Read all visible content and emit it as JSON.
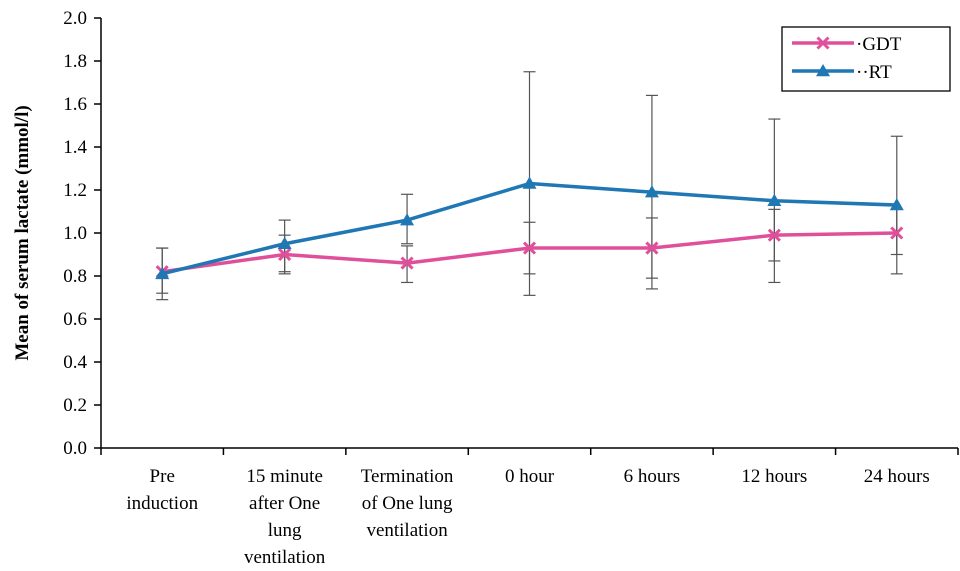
{
  "chart_data": {
    "type": "line",
    "ylabel": "Mean of serum lactate (mmol/l)",
    "xlabel": "",
    "ylim": [
      0,
      2.0
    ],
    "yticks": [
      "0.0",
      "0.2",
      "0.4",
      "0.6",
      "0.8",
      "1.0",
      "1.2",
      "1.4",
      "1.6",
      "1.8",
      "2.0"
    ],
    "categories": [
      [
        "Pre",
        "induction"
      ],
      [
        "15 minute",
        "after One",
        "lung",
        "ventilation"
      ],
      [
        "Termination",
        "of One lung",
        "ventilation"
      ],
      [
        "0 hour"
      ],
      [
        "6 hours"
      ],
      [
        "12 hours"
      ],
      [
        "24 hours"
      ]
    ],
    "grid": false,
    "legend_position": "top-right",
    "series": [
      {
        "name": "GDT",
        "legend_label": "·GDT",
        "color": "#e0509a",
        "marker": "x",
        "values": [
          0.82,
          0.9,
          0.86,
          0.93,
          0.93,
          0.99,
          1.0
        ],
        "error_low": [
          0.72,
          0.82,
          0.77,
          0.81,
          0.79,
          0.87,
          0.9
        ],
        "error_high": [
          0.93,
          0.99,
          0.94,
          1.05,
          1.07,
          1.11,
          1.11
        ]
      },
      {
        "name": "RT",
        "legend_label": "··RT",
        "color": "#1f77b4",
        "marker": "triangle",
        "values": [
          0.81,
          0.95,
          1.06,
          1.23,
          1.19,
          1.15,
          1.13
        ],
        "error_low": [
          0.69,
          0.81,
          0.95,
          0.71,
          0.74,
          0.77,
          0.81
        ],
        "error_high": [
          0.93,
          1.06,
          1.18,
          1.75,
          1.64,
          1.53,
          1.45
        ]
      }
    ]
  }
}
